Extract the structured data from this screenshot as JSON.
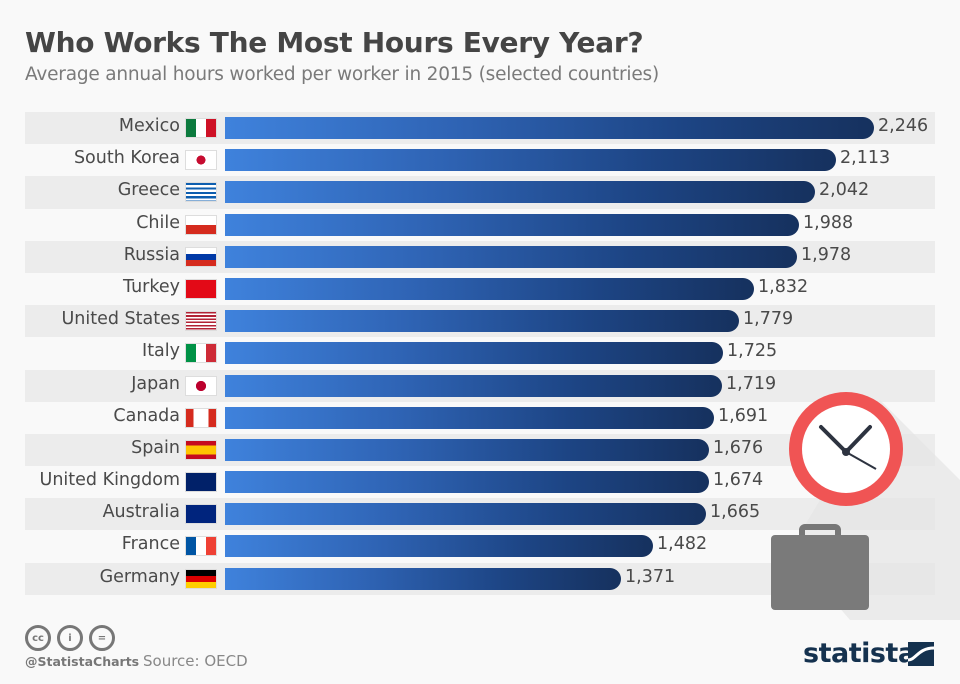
{
  "title": "Who Works The Most Hours Every Year?",
  "subtitle": "Average annual hours worked per worker in 2015 (selected countries)",
  "footer": {
    "handle": "@StatistaCharts",
    "source": "Source: OECD",
    "brand": "statista",
    "license_icons": [
      "cc-icon",
      "by-icon",
      "nd-icon"
    ]
  },
  "colors": {
    "bar_start": "#3f82dc",
    "bar_end": "#16315e",
    "row_stripe": "#ececec",
    "clock_ring": "#f05454",
    "briefcase": "#7a7a7a",
    "brand": "#15324f"
  },
  "rows": [
    {
      "country": "Mexico",
      "value_label": "2,246",
      "flag": "mexico"
    },
    {
      "country": "South Korea",
      "value_label": "2,113",
      "flag": "south-korea"
    },
    {
      "country": "Greece",
      "value_label": "2,042",
      "flag": "greece"
    },
    {
      "country": "Chile",
      "value_label": "1,988",
      "flag": "chile"
    },
    {
      "country": "Russia",
      "value_label": "1,978",
      "flag": "russia"
    },
    {
      "country": "Turkey",
      "value_label": "1,832",
      "flag": "turkey"
    },
    {
      "country": "United States",
      "value_label": "1,779",
      "flag": "united-states"
    },
    {
      "country": "Italy",
      "value_label": "1,725",
      "flag": "italy"
    },
    {
      "country": "Japan",
      "value_label": "1,719",
      "flag": "japan"
    },
    {
      "country": "Canada",
      "value_label": "1,691",
      "flag": "canada"
    },
    {
      "country": "Spain",
      "value_label": "1,676",
      "flag": "spain"
    },
    {
      "country": "United Kingdom",
      "value_label": "1,674",
      "flag": "united-kingdom"
    },
    {
      "country": "Australia",
      "value_label": "1,665",
      "flag": "australia"
    },
    {
      "country": "France",
      "value_label": "1,482",
      "flag": "france"
    },
    {
      "country": "Germany",
      "value_label": "1,371",
      "flag": "germany"
    }
  ],
  "chart_data": {
    "type": "bar",
    "orientation": "horizontal",
    "title": "Who Works The Most Hours Every Year?",
    "subtitle": "Average annual hours worked per worker in 2015 (selected countries)",
    "categories": [
      "Mexico",
      "South Korea",
      "Greece",
      "Chile",
      "Russia",
      "Turkey",
      "United States",
      "Italy",
      "Japan",
      "Canada",
      "Spain",
      "United Kingdom",
      "Australia",
      "France",
      "Germany"
    ],
    "values": [
      2246,
      2113,
      2042,
      1988,
      1978,
      1832,
      1779,
      1725,
      1719,
      1691,
      1676,
      1674,
      1665,
      1482,
      1371
    ],
    "xlabel": "",
    "ylabel": "",
    "xlim": [
      0,
      2246
    ],
    "grid": false,
    "legend": "none",
    "data_labels": true,
    "source": "OECD"
  }
}
